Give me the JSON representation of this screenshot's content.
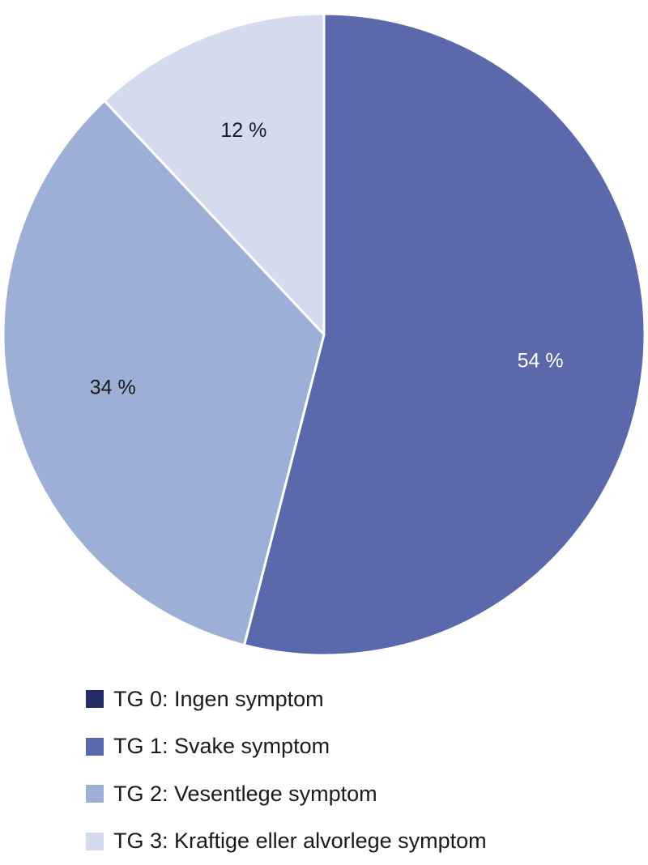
{
  "chart_data": {
    "type": "pie",
    "slices": [
      {
        "name": "TG 0: Ingen symptom",
        "value": 0,
        "label": "",
        "color": "#262b66",
        "label_color": "#ffffff"
      },
      {
        "name": "TG 1: Svake symptom",
        "value": 54,
        "label": "54 %",
        "color": "#5b68ab",
        "label_color": "#ffffff"
      },
      {
        "name": "TG 2: Vesentlege symptom",
        "value": 34,
        "label": "34 %",
        "color": "#9daed7",
        "label_color": "#1a1a1a"
      },
      {
        "name": "TG 3: Kraftige eller alvorlege symptom",
        "value": 12,
        "label": "12 %",
        "color": "#d5dbef",
        "label_color": "#1a1a1a"
      }
    ],
    "legend_position": "bottom-left"
  }
}
